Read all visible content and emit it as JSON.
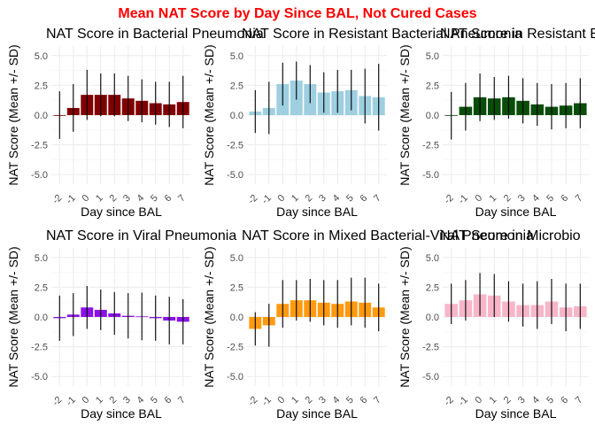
{
  "figure_title": "Mean NAT Score by Day Since BAL, Not Cured Cases",
  "title_color": "#ff0000",
  "chart_data": [
    {
      "type": "bar",
      "title": "NAT Score in Bacterial Pneumonia",
      "color": "#800000",
      "xlabel": "Day since BAL",
      "ylabel": "NAT Score (Mean +/- SD)",
      "categories": [
        "-2",
        "-1",
        "0",
        "1",
        "2",
        "3",
        "4",
        "5",
        "6",
        "7"
      ],
      "ylim": [
        -5.8,
        5.8
      ],
      "yticks": [
        "5.0",
        "2.5",
        "0.0",
        "-2.5",
        "-5.0"
      ],
      "values": [
        0.0,
        0.6,
        1.7,
        1.7,
        1.7,
        1.4,
        1.2,
        1.0,
        0.9,
        1.1
      ],
      "sd": [
        2.0,
        2.0,
        2.1,
        1.8,
        1.8,
        1.9,
        1.8,
        1.8,
        1.9,
        2.2
      ]
    },
    {
      "type": "bar",
      "title": "NAT Score in Resistant Bacterial Pneumonia",
      "color": "#9ecfe0",
      "xlabel": "Day since BAL",
      "ylabel": "NAT Score (Mean +/- SD)",
      "categories": [
        "-2",
        "-1",
        "0",
        "1",
        "2",
        "3",
        "4",
        "5",
        "6",
        "7"
      ],
      "ylim": [
        -5.8,
        5.8
      ],
      "yticks": [
        "5.0",
        "2.5",
        "0.0",
        "-2.5",
        "-5.0"
      ],
      "values": [
        0.3,
        0.6,
        2.6,
        2.9,
        2.6,
        1.9,
        2.0,
        2.1,
        1.6,
        1.5
      ],
      "sd": [
        1.8,
        2.2,
        1.8,
        1.6,
        1.6,
        1.7,
        1.8,
        1.7,
        2.3,
        2.8
      ]
    },
    {
      "type": "bar",
      "title": "NAT Score in Resistant Bacterial Pneumonia Suscept",
      "color": "#0a4d0a",
      "xlabel": "Day since BAL",
      "ylabel": "NAT Score (Mean +/- SD)",
      "categories": [
        "-2",
        "-1",
        "0",
        "1",
        "2",
        "3",
        "4",
        "5",
        "6",
        "7"
      ],
      "ylim": [
        -5.8,
        5.8
      ],
      "yticks": [
        "5.0",
        "2.5",
        "0.0",
        "-2.5",
        "-5.0"
      ],
      "values": [
        -0.05,
        0.7,
        1.5,
        1.4,
        1.5,
        1.2,
        0.9,
        0.7,
        0.8,
        1.0
      ],
      "sd": [
        2.0,
        2.0,
        2.0,
        1.8,
        1.8,
        1.9,
        1.8,
        1.9,
        1.9,
        2.1
      ]
    },
    {
      "type": "bar",
      "title": "NAT Score in Viral Pneumonia",
      "color": "#8b10e6",
      "xlabel": "Day since BAL",
      "ylabel": "NAT Score (Mean +/- SD)",
      "categories": [
        "-2",
        "-1",
        "0",
        "1",
        "2",
        "3",
        "4",
        "5",
        "6",
        "7"
      ],
      "ylim": [
        -5.8,
        5.8
      ],
      "yticks": [
        "5.0",
        "2.5",
        "0.0",
        "-2.5",
        "-5.0"
      ],
      "values": [
        -0.1,
        0.2,
        0.8,
        0.6,
        0.3,
        0.1,
        0.05,
        -0.1,
        -0.3,
        -0.4
      ],
      "sd": [
        1.9,
        1.8,
        1.8,
        1.7,
        1.8,
        1.9,
        2.0,
        1.9,
        2.0,
        1.9
      ]
    },
    {
      "type": "bar",
      "title": "NAT Score in Mixed Bacterial-Viral Pneumonia",
      "color": "#ff9a10",
      "xlabel": "Day since BAL",
      "ylabel": "NAT Score (Mean +/- SD)",
      "categories": [
        "-2",
        "-1",
        "0",
        "1",
        "2",
        "3",
        "4",
        "5",
        "6",
        "7"
      ],
      "ylim": [
        -5.8,
        5.8
      ],
      "yticks": [
        "5.0",
        "2.5",
        "0.0",
        "-2.5",
        "-5.0"
      ],
      "values": [
        -1.0,
        -0.7,
        1.1,
        1.4,
        1.4,
        1.2,
        1.1,
        1.3,
        1.2,
        0.8
      ],
      "sd": [
        1.4,
        1.8,
        2.0,
        1.7,
        1.8,
        1.9,
        2.0,
        2.0,
        2.1,
        2.0
      ]
    },
    {
      "type": "bar",
      "title": "NAT Score in Microbio",
      "color": "#f7b6c8",
      "xlabel": "Day since BAL",
      "ylabel": "NAT Score (Mean +/- SD)",
      "categories": [
        "-2",
        "-1",
        "0",
        "1",
        "2",
        "3",
        "4",
        "5",
        "6",
        "7"
      ],
      "ylim": [
        -5.8,
        5.8
      ],
      "yticks": [
        "5.0",
        "2.5",
        "0.0",
        "-2.5",
        "-5.0"
      ],
      "values": [
        1.1,
        1.4,
        1.9,
        1.8,
        1.3,
        1.0,
        1.0,
        1.3,
        0.8,
        0.9
      ],
      "sd": [
        1.7,
        1.7,
        1.8,
        1.8,
        1.7,
        1.8,
        2.0,
        1.9,
        2.0,
        1.9
      ]
    }
  ]
}
